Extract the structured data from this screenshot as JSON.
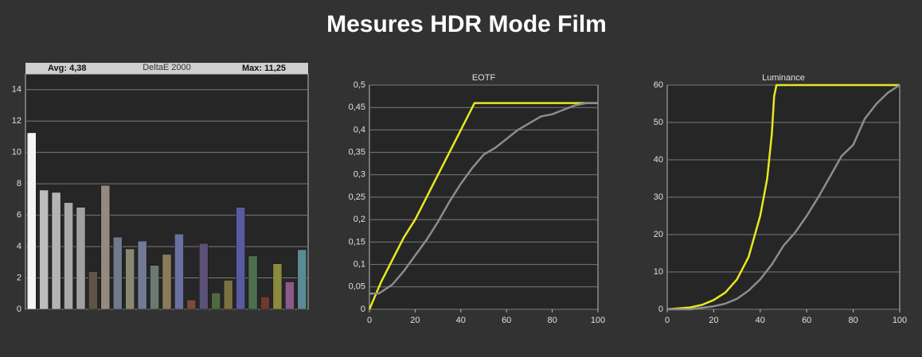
{
  "title": "Mesures HDR Mode Film",
  "chart_data": [
    {
      "type": "bar",
      "title": "DeltaE 2000",
      "annotations": [
        "Avg: 4,38",
        "Max: 11,25"
      ],
      "values": [
        11.25,
        7.6,
        7.45,
        6.8,
        6.5,
        2.4,
        7.9,
        4.6,
        3.85,
        4.35,
        2.8,
        3.5,
        4.8,
        0.6,
        4.2,
        1.05,
        1.85,
        6.5,
        3.4,
        0.8,
        2.9,
        1.75,
        3.8
      ],
      "colors": [
        "#f4f4f4",
        "#bdbdbd",
        "#b3b3b3",
        "#a8a8a8",
        "#a0a0a0",
        "#5e5448",
        "#938a80",
        "#6f7a8c",
        "#8a8770",
        "#727a96",
        "#6b7a70",
        "#8c7a5c",
        "#6a70a0",
        "#7a4a3c",
        "#5a5078",
        "#4f6a40",
        "#7a7040",
        "#5a5aa0",
        "#4e6e50",
        "#6e3a32",
        "#8a8a40",
        "#8a5a8a",
        "#5a8a96"
      ],
      "ylim": [
        0,
        15
      ],
      "yticks": [
        0,
        2,
        4,
        6,
        8,
        10,
        12,
        14
      ],
      "grid": true
    },
    {
      "type": "line",
      "title": "EOTF",
      "series": [
        {
          "color": "#e8e820",
          "x": [
            0,
            5,
            10,
            15,
            20,
            25,
            30,
            35,
            40,
            44,
            46,
            50,
            100
          ],
          "values": [
            0,
            0.06,
            0.11,
            0.16,
            0.2,
            0.25,
            0.3,
            0.35,
            0.4,
            0.44,
            0.46,
            0.46,
            0.46
          ]
        },
        {
          "color": "#8c8c8c",
          "x": [
            0,
            4,
            10,
            15,
            20,
            25,
            30,
            35,
            40,
            45,
            50,
            55,
            60,
            65,
            70,
            75,
            80,
            85,
            90,
            95,
            100
          ],
          "values": [
            0.035,
            0.035,
            0.055,
            0.085,
            0.12,
            0.155,
            0.195,
            0.24,
            0.28,
            0.315,
            0.345,
            0.36,
            0.38,
            0.4,
            0.415,
            0.43,
            0.435,
            0.445,
            0.455,
            0.46,
            0.46
          ]
        }
      ],
      "xlim": [
        0,
        100
      ],
      "xticks": [
        0,
        20,
        40,
        60,
        80,
        100
      ],
      "ylim": [
        0,
        0.5
      ],
      "yticks": [
        0,
        {
          "value": 0.05,
          "label": "0,05"
        },
        {
          "value": 0.1,
          "label": "0,1"
        },
        {
          "value": 0.15,
          "label": "0,15"
        },
        {
          "value": 0.2,
          "label": "0,2"
        },
        {
          "value": 0.25,
          "label": "0,25"
        },
        {
          "value": 0.3,
          "label": "0,3"
        },
        {
          "value": 0.35,
          "label": "0,35"
        },
        {
          "value": 0.4,
          "label": "0,4"
        },
        {
          "value": 0.45,
          "label": "0,45"
        },
        {
          "value": 0.5,
          "label": "0,5"
        }
      ],
      "grid": true
    },
    {
      "type": "line",
      "title": "Luminance",
      "series": [
        {
          "color": "#e8e820",
          "x": [
            0,
            10,
            15,
            20,
            25,
            30,
            35,
            40,
            43,
            45,
            46,
            47,
            100
          ],
          "values": [
            0,
            0.5,
            1.2,
            2.5,
            4.5,
            8,
            14,
            25,
            35,
            47,
            57,
            60,
            60
          ]
        },
        {
          "color": "#8c8c8c",
          "x": [
            0,
            10,
            20,
            25,
            30,
            35,
            40,
            45,
            50,
            55,
            60,
            65,
            70,
            75,
            80,
            85,
            90,
            95,
            100
          ],
          "values": [
            0,
            0,
            0.8,
            1.5,
            2.8,
            5,
            8,
            12,
            17,
            20.5,
            25,
            30,
            35.5,
            41,
            44,
            51,
            55,
            58,
            60
          ]
        }
      ],
      "xlim": [
        0,
        100
      ],
      "xticks": [
        0,
        20,
        40,
        60,
        80,
        100
      ],
      "ylim": [
        0,
        60
      ],
      "yticks": [
        0,
        10,
        20,
        30,
        40,
        50,
        60
      ],
      "grid": true
    }
  ]
}
